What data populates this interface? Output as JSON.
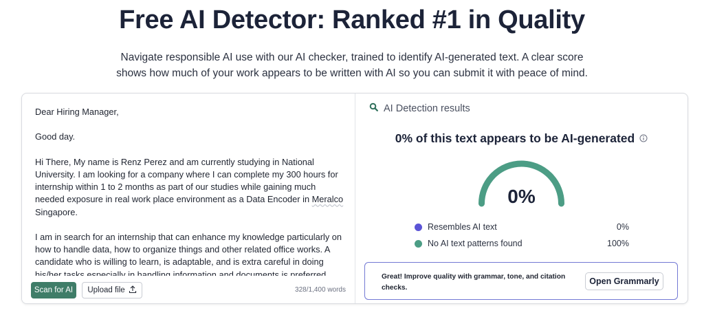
{
  "page": {
    "title": "Free AI Detector: Ranked #1 in Quality",
    "subtitle_line1": "Navigate responsible AI use with our AI checker, trained to identify AI-generated text. A clear score",
    "subtitle_line2": "shows how much of your work appears to be written with AI so you can submit it with peace of mind."
  },
  "editor": {
    "paragraphs": [
      "Dear Hiring Manager,",
      "Good day.",
      "Hi There, My name is Renz Perez and am currently studying in National University. I am looking for a company where I can complete my 300 hours for internship within 1 to 2 months as part of our studies while gaining much needed exposure in real work place environment as a Data Encoder in ",
      "I am in search for an internship that can enhance my knowledge particularly on how to handle data, how to organize things and other related office works. A candidate who is willing to learn, is adaptable, and is extra careful in doing his/her tasks especially in handling information and documents is preferred."
    ],
    "p3_flagged_word": "Meralco",
    "p3_tail": " Singapore.",
    "scan_button": "Scan for AI",
    "upload_button": "Upload file",
    "word_count": "328/1,400 words"
  },
  "results": {
    "header": "AI Detection results",
    "headline": "0% of this text appears to be AI-generated",
    "score_label": "0%",
    "ai_fraction": 0.0,
    "human_fraction": 1.0,
    "legend": [
      {
        "label": "Resembles AI text",
        "value": "0%",
        "color": "#5b54d6"
      },
      {
        "label": "No AI text patterns found",
        "value": "100%",
        "color": "#4c9d85"
      }
    ]
  },
  "promo": {
    "text": "Great! Improve quality with grammar, tone, and citation checks.",
    "button": "Open Grammarly"
  },
  "icons": {
    "search": "search-icon",
    "info": "info-icon",
    "upload": "upload-icon"
  }
}
